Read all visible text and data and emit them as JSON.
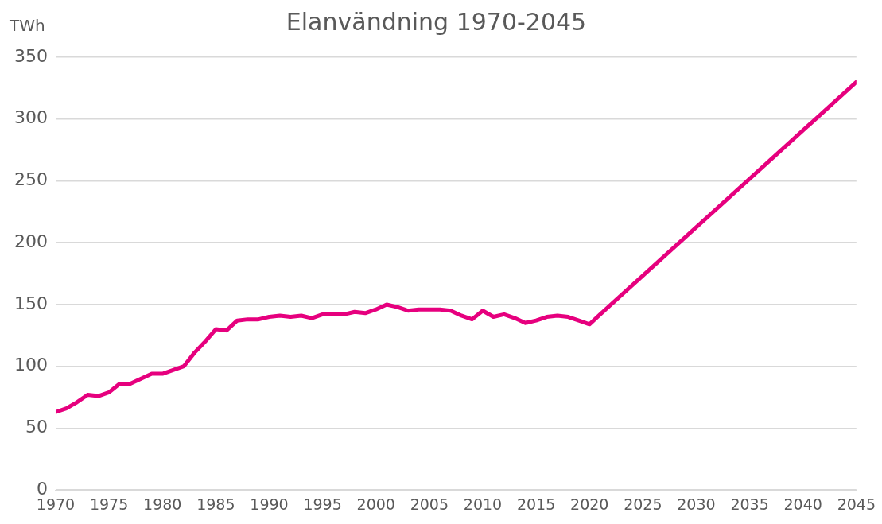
{
  "chart_data": {
    "type": "line",
    "title": "Elanvändning 1970-2045",
    "ylabel": "TWh",
    "x": [
      1970,
      1971,
      1972,
      1973,
      1974,
      1975,
      1976,
      1977,
      1978,
      1979,
      1980,
      1981,
      1982,
      1983,
      1984,
      1985,
      1986,
      1987,
      1988,
      1989,
      1990,
      1991,
      1992,
      1993,
      1994,
      1995,
      1996,
      1997,
      1998,
      1999,
      2000,
      2001,
      2002,
      2003,
      2004,
      2005,
      2006,
      2007,
      2008,
      2009,
      2010,
      2011,
      2012,
      2013,
      2014,
      2015,
      2016,
      2017,
      2018,
      2019,
      2020,
      2021,
      2045
    ],
    "series": [
      {
        "color": "#e6007e",
        "values": [
          63,
          66,
          71,
          77,
          76,
          79,
          86,
          86,
          90,
          94,
          94,
          97,
          100,
          111,
          120,
          130,
          129,
          137,
          138,
          138,
          140,
          141,
          140,
          141,
          139,
          142,
          142,
          142,
          144,
          143,
          146,
          150,
          148,
          145,
          146,
          146,
          146,
          145,
          141,
          138,
          145,
          140,
          142,
          139,
          135,
          137,
          140,
          141,
          140,
          137,
          134,
          142,
          330
        ]
      }
    ],
    "xlim": [
      1970,
      2045
    ],
    "xticks": [
      1970,
      1975,
      1980,
      1985,
      1990,
      1995,
      2000,
      2005,
      2010,
      2015,
      2020,
      2025,
      2030,
      2035,
      2040,
      2045
    ],
    "ylim": [
      0,
      350
    ],
    "yticks": [
      0,
      50,
      100,
      150,
      200,
      250,
      300,
      350
    ],
    "grid": "y",
    "legend": false,
    "marker": "none",
    "line_style": "solid"
  }
}
